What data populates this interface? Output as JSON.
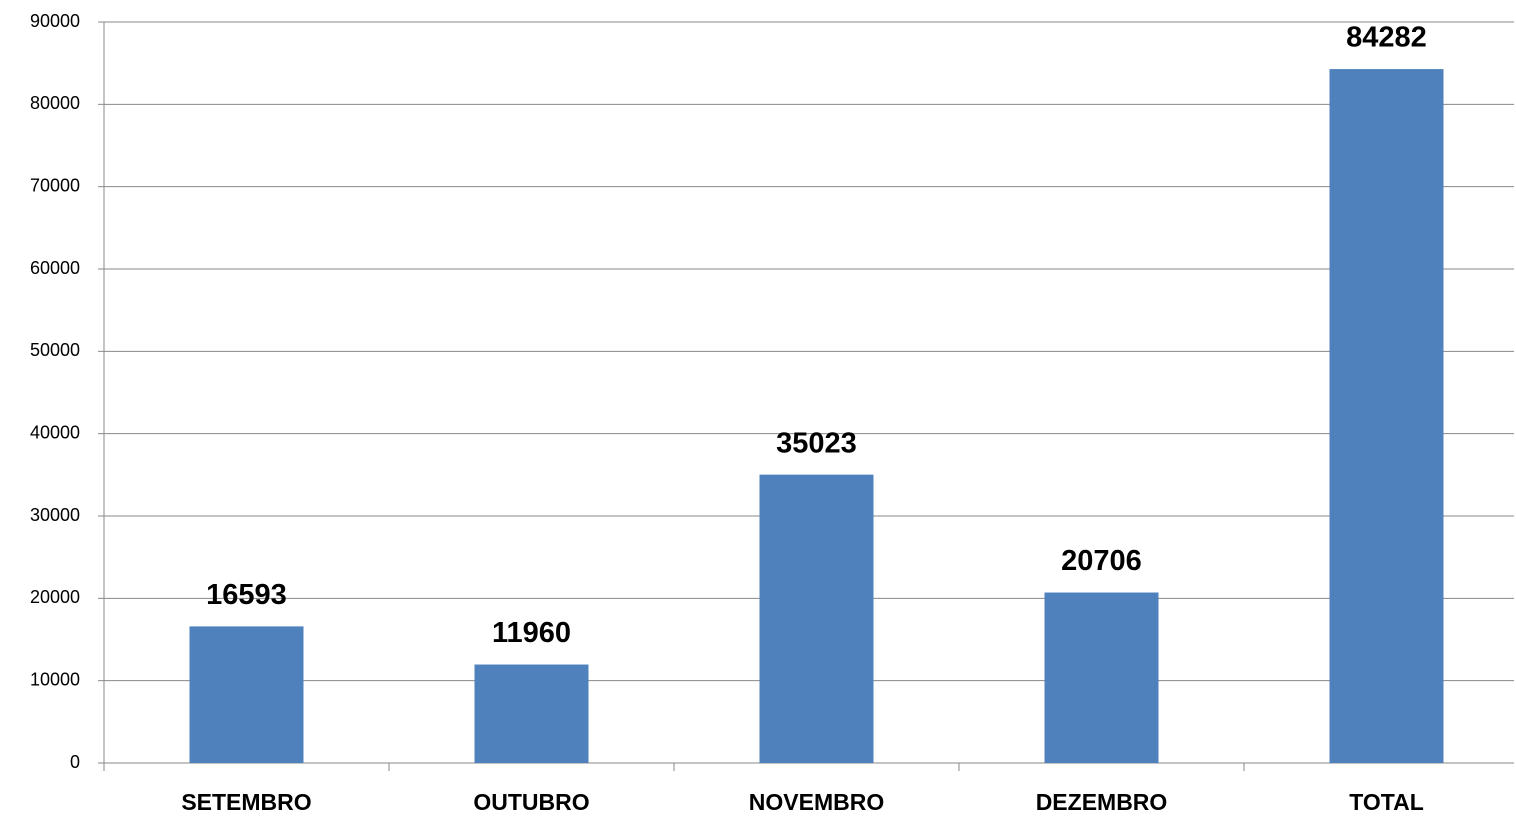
{
  "chart_data": {
    "type": "bar",
    "categories": [
      "SETEMBRO",
      "OUTUBRO",
      "NOVEMBRO",
      "DEZEMBRO",
      "TOTAL"
    ],
    "values": [
      16593,
      11960,
      35023,
      20706,
      84282
    ],
    "color": "#4f81bd",
    "ylim": [
      0,
      90000
    ],
    "yticks": [
      0,
      10000,
      20000,
      30000,
      40000,
      50000,
      60000,
      70000,
      80000,
      90000
    ],
    "grid": true
  }
}
